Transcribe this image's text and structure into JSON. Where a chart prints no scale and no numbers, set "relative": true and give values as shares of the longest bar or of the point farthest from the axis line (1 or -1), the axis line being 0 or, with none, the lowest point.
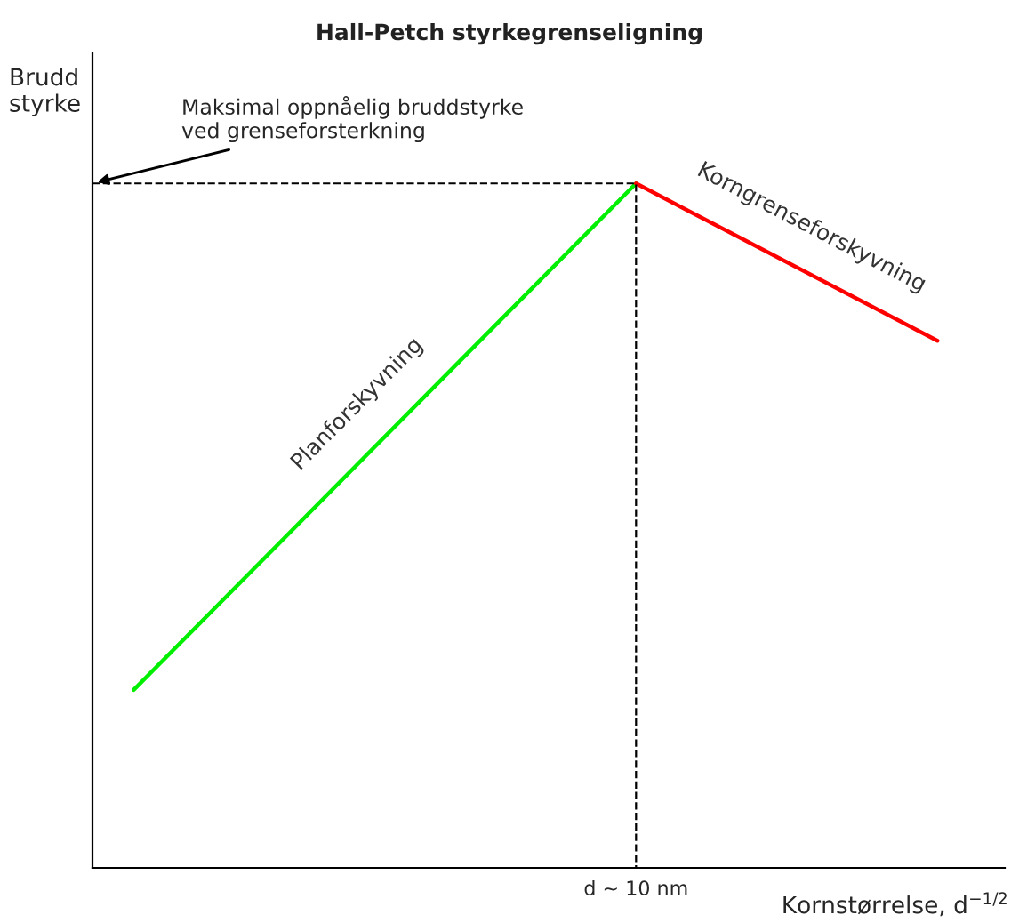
{
  "chart_data": {
    "type": "line",
    "title": "Hall-Petch styrkegrenseligning",
    "xlabel": "Kornstørrelse, d$^{−1/2}$",
    "ylabel": "Brudd\nstyrke",
    "relative": true,
    "categories": [
      null,
      null,
      null,
      null,
      null,
      null,
      null,
      null,
      null
    ],
    "series": [
      {
        "name": "Planforskyvning",
        "color": "#00ee00",
        "values": [
          0.26,
          null,
          null,
          null,
          null,
          1,
          null,
          null,
          null
        ]
      },
      {
        "name": "Korngrenseforskyvning",
        "color": "#ff0000",
        "values": [
          null,
          null,
          null,
          null,
          null,
          1,
          null,
          null,
          0.77
        ]
      }
    ],
    "ref_lines": [
      {
        "axis": "y",
        "value": 1,
        "line_style": "dashed",
        "color": "#000000"
      }
    ],
    "annotations": [
      "Maksimal oppnåelig bruddstyrke\nved grenseforsterkning",
      "d ~ 10 nm"
    ],
    "legend": false,
    "grid": false
  }
}
